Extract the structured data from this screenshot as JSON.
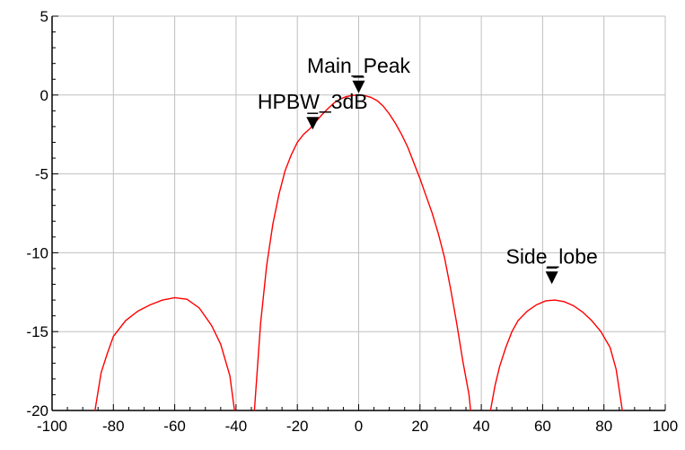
{
  "chart_data": {
    "type": "line",
    "title": "",
    "xlabel": "",
    "ylabel": "",
    "xlim": [
      -100,
      100
    ],
    "ylim": [
      -20,
      5
    ],
    "x_ticks": [
      -100,
      -80,
      -60,
      -40,
      -20,
      0,
      20,
      40,
      60,
      80,
      100
    ],
    "y_ticks": [
      5,
      0,
      -5,
      -10,
      -15,
      -20
    ],
    "grid": true,
    "series": [
      {
        "color": "#ff0000",
        "segments": [
          [
            [
              -86,
              -20
            ],
            [
              -84,
              -17.6
            ],
            [
              -82,
              -16.4
            ],
            [
              -80,
              -15.3
            ],
            [
              -76,
              -14.3
            ],
            [
              -72,
              -13.7
            ],
            [
              -68,
              -13.3
            ],
            [
              -64,
              -13.0
            ],
            [
              -60,
              -12.85
            ],
            [
              -56,
              -12.95
            ],
            [
              -52,
              -13.5
            ],
            [
              -48,
              -14.6
            ],
            [
              -45,
              -15.8
            ],
            [
              -42,
              -17.8
            ],
            [
              -40.5,
              -20
            ]
          ],
          [
            [
              -34,
              -20
            ],
            [
              -32,
              -14.5
            ],
            [
              -30,
              -10.8
            ],
            [
              -28,
              -8.2
            ],
            [
              -26,
              -6.3
            ],
            [
              -24,
              -4.8
            ],
            [
              -22,
              -3.8
            ],
            [
              -20,
              -3.0
            ],
            [
              -18,
              -2.5
            ],
            [
              -16,
              -2.15
            ],
            [
              -14,
              -1.7
            ],
            [
              -12,
              -1.25
            ],
            [
              -10,
              -0.85
            ],
            [
              -8,
              -0.5
            ],
            [
              -6,
              -0.25
            ],
            [
              -4,
              -0.1
            ],
            [
              -2,
              -0.02
            ],
            [
              0,
              0
            ],
            [
              2,
              -0.04
            ],
            [
              4,
              -0.15
            ],
            [
              6,
              -0.35
            ],
            [
              8,
              -0.7
            ],
            [
              10,
              -1.2
            ],
            [
              12,
              -1.8
            ],
            [
              14,
              -2.5
            ],
            [
              16,
              -3.3
            ],
            [
              18,
              -4.3
            ],
            [
              20,
              -5.3
            ],
            [
              22,
              -6.4
            ],
            [
              24,
              -7.5
            ],
            [
              26,
              -8.8
            ],
            [
              28,
              -10.3
            ],
            [
              30,
              -12.3
            ],
            [
              32,
              -14.5
            ],
            [
              34,
              -16.9
            ],
            [
              36,
              -19.0
            ],
            [
              36.5,
              -20
            ]
          ],
          [
            [
              43,
              -20
            ],
            [
              44.5,
              -18.4
            ],
            [
              46,
              -17.2
            ],
            [
              48,
              -16.0
            ],
            [
              50,
              -15.0
            ],
            [
              52,
              -14.3
            ],
            [
              55,
              -13.7
            ],
            [
              58,
              -13.3
            ],
            [
              61,
              -13.05
            ],
            [
              64,
              -13.0
            ],
            [
              67,
              -13.1
            ],
            [
              70,
              -13.35
            ],
            [
              73,
              -13.75
            ],
            [
              76,
              -14.3
            ],
            [
              79,
              -15.0
            ],
            [
              82,
              -16.0
            ],
            [
              84,
              -17.4
            ],
            [
              86,
              -20
            ]
          ]
        ]
      }
    ],
    "markers": [
      {
        "label": "Main_Peak",
        "x": 0,
        "y": 0
      },
      {
        "label": "HPBW_3dB",
        "x": -15,
        "y": -2.3
      },
      {
        "label": "Side_lobe",
        "x": 63,
        "y": -12.1
      }
    ]
  }
}
